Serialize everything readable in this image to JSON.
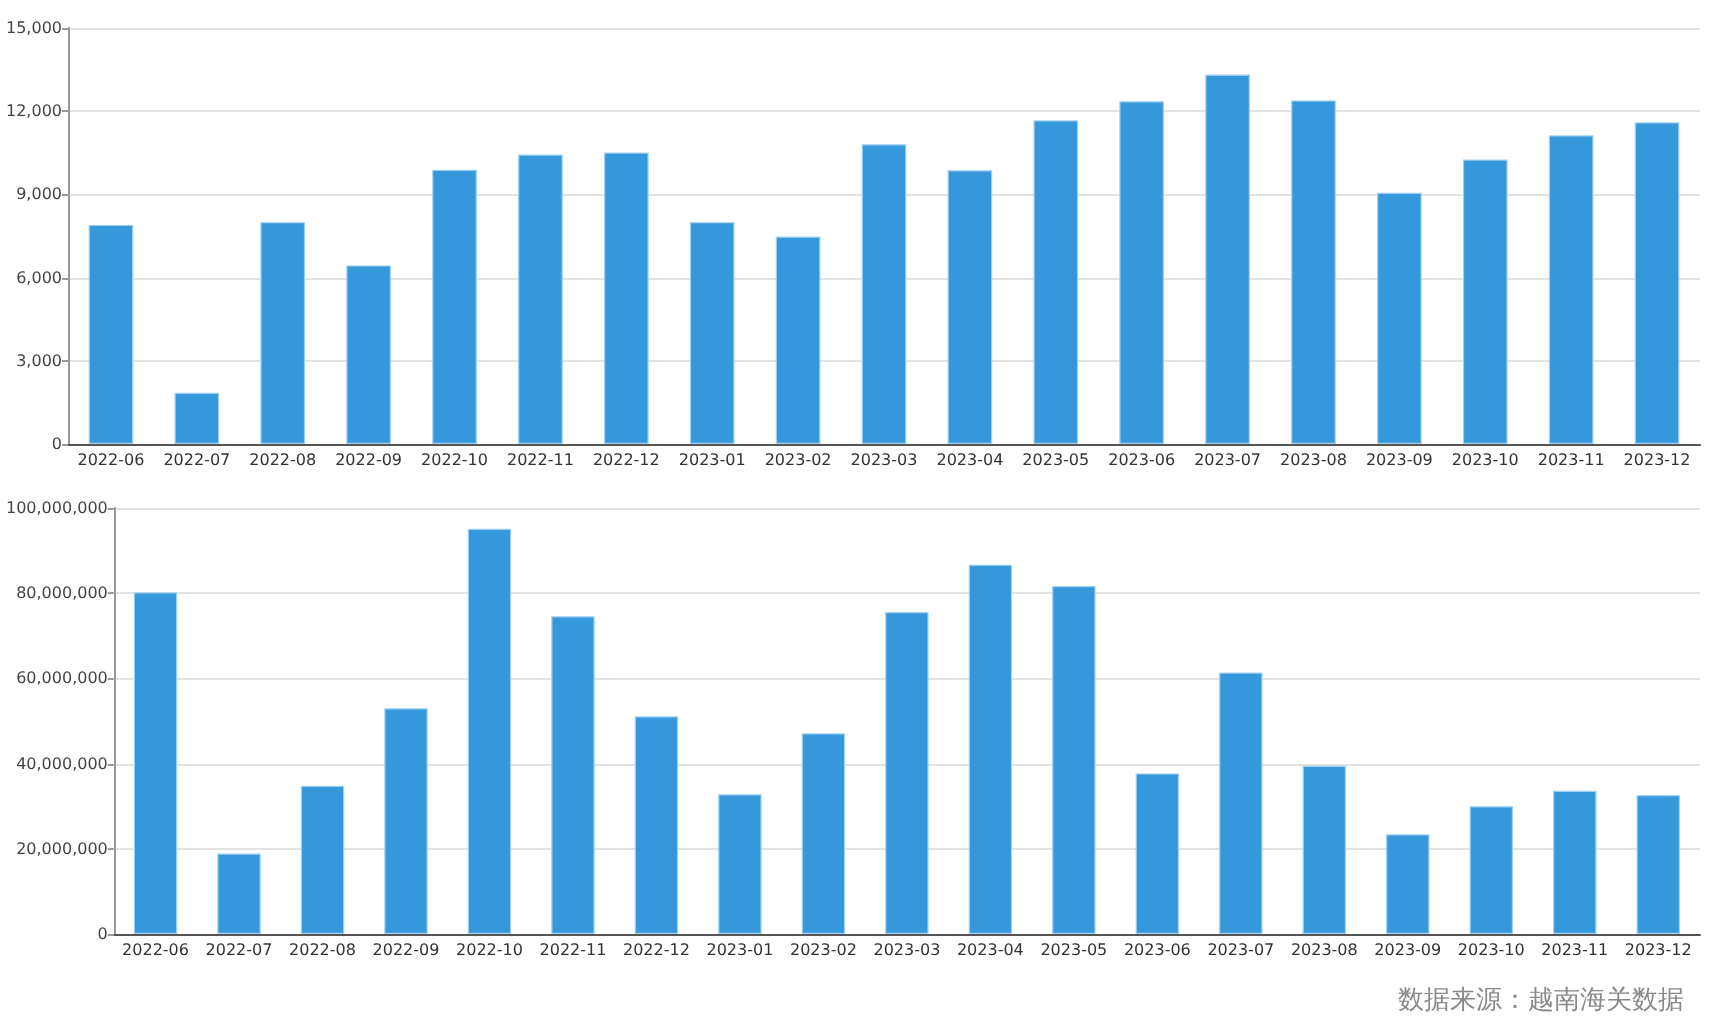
{
  "chart_data": [
    {
      "type": "bar",
      "categories": [
        "2022-06",
        "2022-07",
        "2022-08",
        "2022-09",
        "2022-10",
        "2022-11",
        "2022-12",
        "2023-01",
        "2023-02",
        "2023-03",
        "2023-04",
        "2023-05",
        "2023-06",
        "2023-07",
        "2023-08",
        "2023-09",
        "2023-10",
        "2023-11",
        "2023-12"
      ],
      "values": [
        7900,
        1850,
        8000,
        6440,
        9890,
        10440,
        10510,
        8000,
        7480,
        10810,
        9870,
        11670,
        12360,
        13320,
        12390,
        9060,
        10260,
        11130,
        11600
      ],
      "color": "#3498db",
      "ylim": [
        0,
        15000
      ],
      "yticks": [
        {
          "value": 0,
          "label": "0"
        },
        {
          "value": 3000,
          "label": "3,000"
        },
        {
          "value": 6000,
          "label": "6,000"
        },
        {
          "value": 9000,
          "label": "9,000"
        },
        {
          "value": 12000,
          "label": "12,000"
        },
        {
          "value": 15000,
          "label": "15,000"
        }
      ],
      "grid": "y"
    },
    {
      "type": "bar",
      "categories": [
        "2022-06",
        "2022-07",
        "2022-08",
        "2022-09",
        "2022-10",
        "2022-11",
        "2022-12",
        "2023-01",
        "2023-02",
        "2023-03",
        "2023-04",
        "2023-05",
        "2023-06",
        "2023-07",
        "2023-08",
        "2023-09",
        "2023-10",
        "2023-11",
        "2023-12"
      ],
      "values": [
        80200000,
        18900000,
        34800000,
        53000000,
        95100000,
        74600000,
        51100000,
        32800000,
        47100000,
        75600000,
        86700000,
        81700000,
        37700000,
        61400000,
        39500000,
        23400000,
        30000000,
        33600000,
        32600000
      ],
      "color": "#3498db",
      "ylim": [
        0,
        100000000
      ],
      "yticks": [
        {
          "value": 0,
          "label": "0"
        },
        {
          "value": 20000000,
          "label": "20,000,000"
        },
        {
          "value": 40000000,
          "label": "40,000,000"
        },
        {
          "value": 60000000,
          "label": "60,000,000"
        },
        {
          "value": 80000000,
          "label": "80,000,000"
        },
        {
          "value": 100000000,
          "label": "100,000,000"
        }
      ],
      "grid": "y",
      "annotations": [
        "数据来源：越南海关数据"
      ]
    }
  ]
}
